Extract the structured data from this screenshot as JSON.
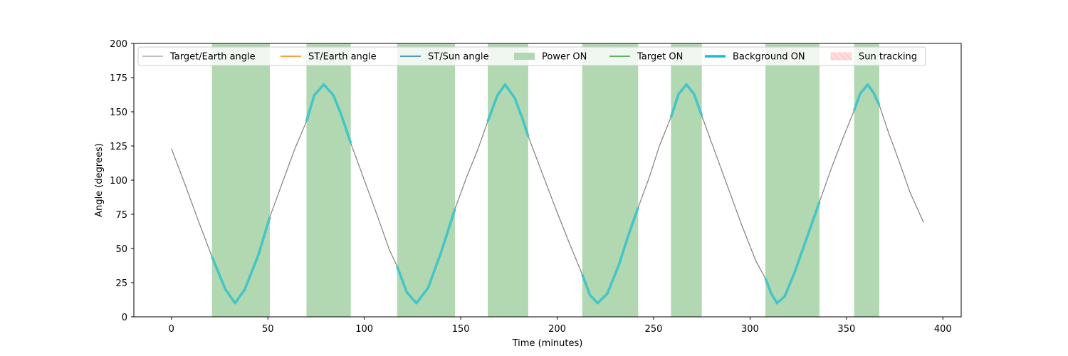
{
  "chart_data": {
    "type": "line",
    "xlabel": "Time (minutes)",
    "ylabel": "Angle (degrees)",
    "xlim": [
      -19.5,
      409.5
    ],
    "ylim": [
      0,
      200
    ],
    "xticks": [
      0,
      50,
      100,
      150,
      200,
      250,
      300,
      350,
      400
    ],
    "yticks": [
      0,
      25,
      50,
      75,
      100,
      125,
      150,
      175,
      200
    ],
    "grid": false,
    "legend_position": "top",
    "colors": {
      "target_earth": "#808080",
      "st_earth": "#ff7f0e",
      "st_sun": "#1f77b4",
      "power_on": "#b2d8b2",
      "target_on": "#2ca02c",
      "background_on": "#17becf",
      "sun_tracking": "#ffdede"
    },
    "legend": [
      {
        "label": "Target/Earth angle",
        "kind": "line",
        "color": "#808080",
        "width": 1
      },
      {
        "label": "ST/Earth angle",
        "kind": "line",
        "color": "#ff7f0e",
        "width": 1.5
      },
      {
        "label": "ST/Sun angle",
        "kind": "line",
        "color": "#1f77b4",
        "width": 1.5
      },
      {
        "label": "Power ON",
        "kind": "patch",
        "color": "#b2d8b2"
      },
      {
        "label": "Target ON",
        "kind": "line",
        "color": "#2ca02c",
        "width": 1.5
      },
      {
        "label": "Background ON",
        "kind": "line",
        "color": "#17becf",
        "width": 3.5
      },
      {
        "label": "Sun tracking",
        "kind": "hatch",
        "color": "#ffdede"
      }
    ],
    "power_on_intervals": [
      [
        21,
        51
      ],
      [
        70,
        93
      ],
      [
        117,
        147
      ],
      [
        164,
        185
      ],
      [
        213,
        242
      ],
      [
        259,
        275
      ],
      [
        308,
        336
      ],
      [
        354,
        367
      ]
    ],
    "series": [
      {
        "name": "Target/Earth angle",
        "x": [
          0,
          7,
          14,
          21,
          28,
          33,
          38,
          45,
          51,
          58,
          64,
          70,
          74,
          79,
          84,
          88,
          93,
          100,
          107,
          113,
          117,
          122,
          127,
          133,
          140,
          147,
          153,
          159,
          164,
          169,
          173,
          178,
          182,
          185,
          192,
          199,
          206,
          213,
          217,
          221,
          226,
          232,
          237,
          242,
          248,
          253,
          259,
          263,
          267,
          271,
          275,
          282,
          289,
          296,
          303,
          308,
          311,
          314,
          318,
          323,
          329,
          336,
          342,
          348,
          354,
          357,
          361,
          364,
          367,
          372,
          377,
          383,
          390
        ],
        "y": [
          123,
          97,
          70,
          44,
          20,
          10,
          20,
          45,
          73,
          100,
          123,
          143,
          162,
          170,
          162,
          148,
          127,
          100,
          73,
          49,
          37,
          18,
          10,
          21,
          48,
          79,
          102,
          123,
          143,
          162,
          170,
          160,
          145,
          132,
          106,
          80,
          55,
          31,
          16,
          10,
          17,
          38,
          60,
          80,
          103,
          125,
          146,
          163,
          170,
          163,
          147,
          120,
          93,
          66,
          41,
          28,
          17,
          10,
          15,
          32,
          56,
          84,
          108,
          130,
          151,
          163,
          170,
          164,
          155,
          134,
          115,
          91,
          69
        ]
      }
    ]
  }
}
